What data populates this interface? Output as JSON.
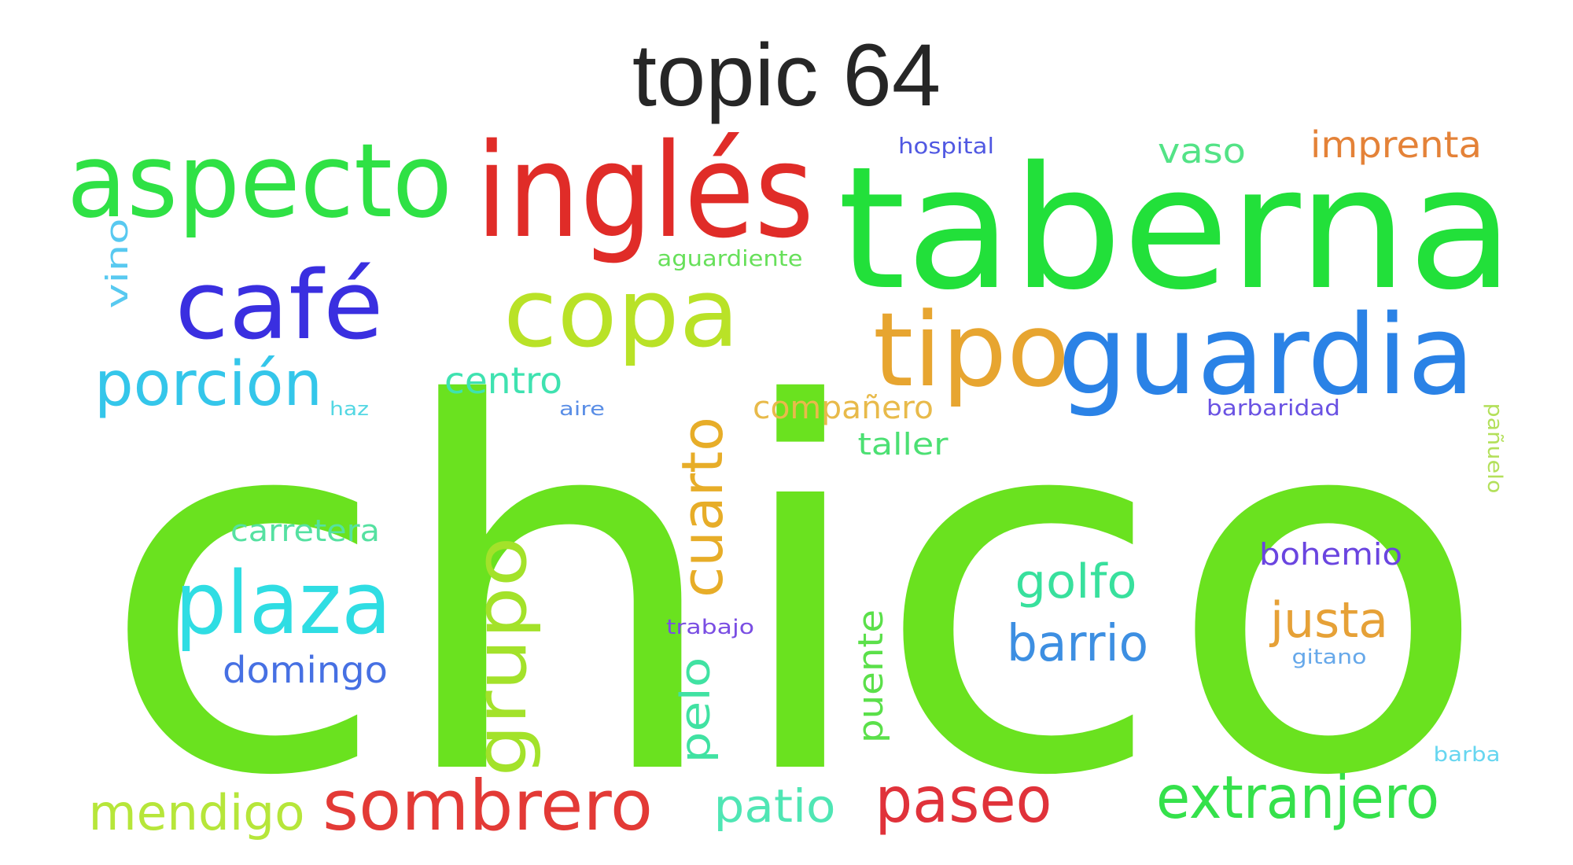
{
  "title": "topic 64",
  "words": [
    {
      "text": "chico",
      "color": "#6ae21f"
    },
    {
      "text": "taberna",
      "color": "#22e03a"
    },
    {
      "text": "inglés",
      "color": "#e02c28"
    },
    {
      "text": "aspecto",
      "color": "#2fe145"
    },
    {
      "text": "guardia",
      "color": "#2a82e6"
    },
    {
      "text": "tipo",
      "color": "#e7a530"
    },
    {
      "text": "copa",
      "color": "#b9e227"
    },
    {
      "text": "café",
      "color": "#3a2fe0"
    },
    {
      "text": "plaza",
      "color": "#2fdde3"
    },
    {
      "text": "porción",
      "color": "#34c6ea"
    },
    {
      "text": "sombrero",
      "color": "#e33a36"
    },
    {
      "text": "paseo",
      "color": "#e0323a"
    },
    {
      "text": "extranjero",
      "color": "#35e14b"
    },
    {
      "text": "grupo",
      "color": "#a3e22a"
    },
    {
      "text": "cuarto",
      "color": "#e7ad28"
    },
    {
      "text": "mendigo",
      "color": "#b6e63a"
    },
    {
      "text": "barrio",
      "color": "#3d8fe2"
    },
    {
      "text": "golfo",
      "color": "#38e09d"
    },
    {
      "text": "justa",
      "color": "#e6a137"
    },
    {
      "text": "patio",
      "color": "#4fe6b4"
    },
    {
      "text": "pelo",
      "color": "#40e2a2"
    },
    {
      "text": "domingo",
      "color": "#4670e3"
    },
    {
      "text": "imprenta",
      "color": "#e48238"
    },
    {
      "text": "vaso",
      "color": "#53e386"
    },
    {
      "text": "centro",
      "color": "#3fe2b0"
    },
    {
      "text": "puente",
      "color": "#5be04a"
    },
    {
      "text": "compañero",
      "color": "#e8ba4a"
    },
    {
      "text": "taller",
      "color": "#4ce073"
    },
    {
      "text": "carretera",
      "color": "#55e1a1"
    },
    {
      "text": "bohemio",
      "color": "#6a45e0"
    },
    {
      "text": "vino",
      "color": "#58c9f0"
    },
    {
      "text": "aguardiente",
      "color": "#67e05a"
    },
    {
      "text": "hospital",
      "color": "#5058e2"
    },
    {
      "text": "barbaridad",
      "color": "#6a52e3"
    },
    {
      "text": "pañuelo",
      "color": "#b3e05a"
    },
    {
      "text": "trabajo",
      "color": "#7a4ee3"
    },
    {
      "text": "gitano",
      "color": "#66a8ea"
    },
    {
      "text": "barba",
      "color": "#66d6f0"
    },
    {
      "text": "haz",
      "color": "#54d7e3"
    },
    {
      "text": "aire",
      "color": "#5a8ee6"
    }
  ]
}
